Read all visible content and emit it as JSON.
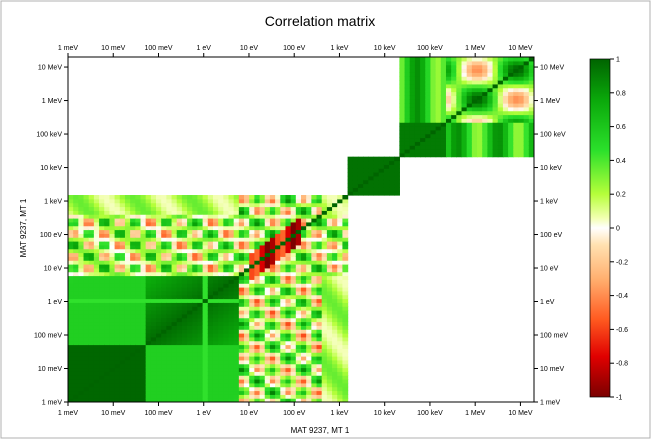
{
  "chart_data": {
    "type": "heatmap",
    "title": "Correlation matrix",
    "xlabel": "MAT 9237, MT 1",
    "ylabel": "MAT 9237, MT 1",
    "x_tick_labels": [
      "1 meV",
      "10 meV",
      "100 meV",
      "1 eV",
      "10 eV",
      "100 eV",
      "1 keV",
      "10 keV",
      "100 keV",
      "1 MeV",
      "10 MeV"
    ],
    "y_tick_labels": [
      "1 meV",
      "10 meV",
      "100 meV",
      "1 eV",
      "10 eV",
      "100 eV",
      "1 keV",
      "10 keV",
      "100 keV",
      "1 MeV",
      "10 MeV"
    ],
    "axis_scale": "log",
    "axis_range_log10_eV": [
      -3,
      7.3
    ],
    "colorbar": {
      "range": [
        -1,
        1
      ],
      "tick_labels": [
        "1",
        "0.8",
        "0.6",
        "0.4",
        "0.2",
        "0",
        "-0.2",
        "-0.4",
        "-0.6",
        "-0.8",
        "-1"
      ],
      "colors": {
        "neg1": "#8b0000",
        "neg": "#ff2a00",
        "neg_low": "#ffd39b",
        "zero": "#ffffff",
        "pos_low": "#e8ff80",
        "pos": "#2be02b",
        "pos1": "#006400"
      }
    },
    "blocks": [
      {
        "region": "thermal-to-keV block",
        "x_log10_eV": [
          -3,
          3.2
        ],
        "y_log10_eV": [
          -3,
          3.2
        ],
        "mean_correlation": 0.55,
        "note": "strong positive correlation at low energy, mixed positive/negative band near the resonance region (10 eV to 200 eV)"
      },
      {
        "region": "keV block",
        "x_log10_eV": [
          3.2,
          4.3
        ],
        "y_log10_eV": [
          3.2,
          4.3
        ],
        "mean_correlation": 0.95
      },
      {
        "region": "fast block",
        "x_log10_eV": [
          4.3,
          7.3
        ],
        "y_log10_eV": [
          4.3,
          7.3
        ],
        "mean_correlation": 0.35,
        "note": "mix of strong positive and moderate negative correlation"
      }
    ],
    "diagonal_value": 1,
    "grid": false,
    "legend_position": "right"
  }
}
